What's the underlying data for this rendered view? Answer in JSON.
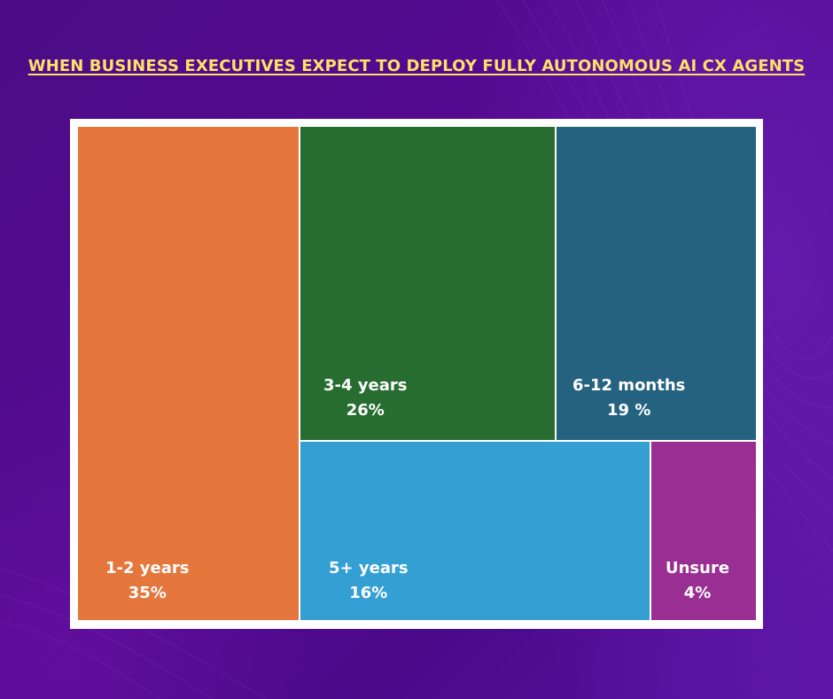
{
  "chart_data": {
    "type": "treemap",
    "title": "WHEN BUSINESS EXECUTIVES EXPECT TO DEPLOY FULLY AUTONOMOUS AI CX AGENTS",
    "unit": "%",
    "items": [
      {
        "label": "1-2 years",
        "value_text": "35%",
        "value": 35,
        "color": "#e5763c"
      },
      {
        "label": "3-4 years",
        "value_text": "26%",
        "value": 26,
        "color": "#276d30"
      },
      {
        "label": "6-12 months",
        "value_text": "19 %",
        "value": 19,
        "color": "#246280"
      },
      {
        "label": "5+ years",
        "value_text": "16%",
        "value": 16,
        "color": "#349fd2"
      },
      {
        "label": "Unsure",
        "value_text": "4%",
        "value": 4,
        "color": "#9a2f93"
      }
    ]
  },
  "colors": {
    "title": "#ffe066",
    "frame": "#ffffff",
    "background": "#4b0c86"
  }
}
